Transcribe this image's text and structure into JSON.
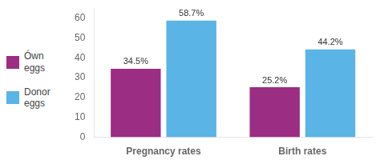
{
  "chart_data": {
    "type": "bar",
    "categories": [
      "Pregnancy rates",
      "Birth rates"
    ],
    "series": [
      {
        "name": "Ówn\neggs",
        "color": "#9b2d82",
        "values": [
          34.5,
          25.2
        ],
        "value_labels": [
          "34.5%",
          "25.2%"
        ]
      },
      {
        "name": "Donor\neggs",
        "color": "#5ab4e5",
        "values": [
          58.7,
          44.2
        ],
        "value_labels": [
          "58.7%",
          "44.2%"
        ]
      }
    ],
    "ylim": [
      0,
      65
    ],
    "yticks": [
      0,
      10,
      20,
      30,
      40,
      50,
      60
    ],
    "grid": false,
    "legend": "left",
    "data_labels": true
  }
}
